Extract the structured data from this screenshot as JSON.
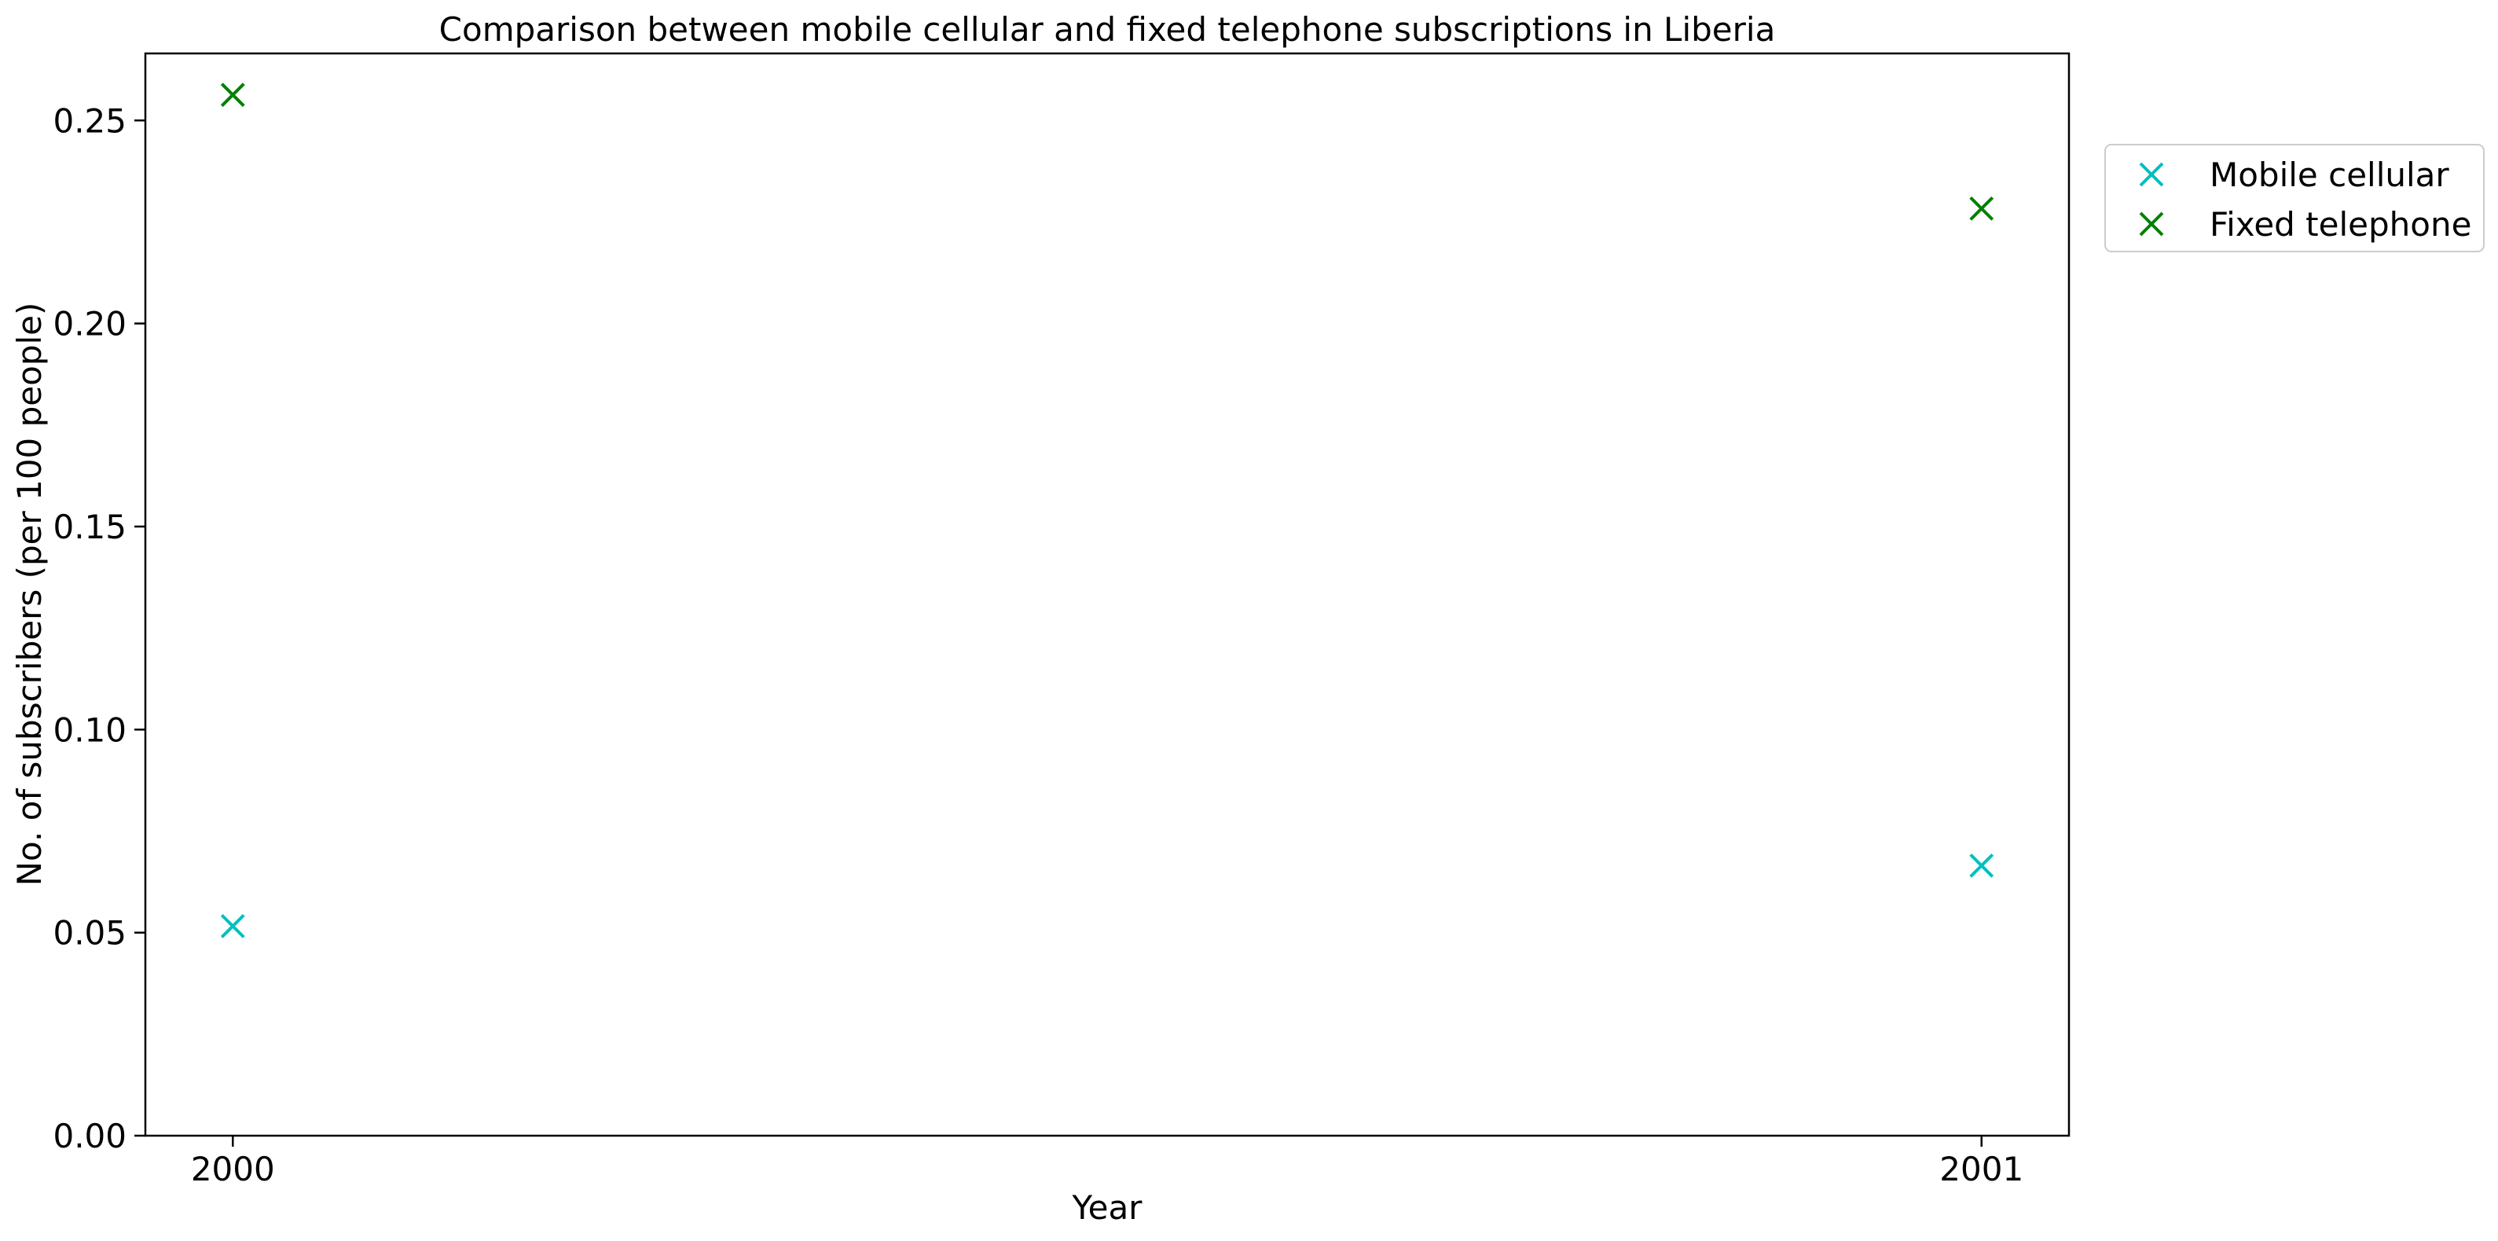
{
  "chart_data": {
    "type": "scatter",
    "title": "Comparison between mobile cellular and fixed telephone subscriptions in Liberia",
    "xlabel": "Year",
    "ylabel": "No. of subscribers (per 100 people)",
    "x": [
      2000,
      2001
    ],
    "x_tick_labels": [
      "2000",
      "2001"
    ],
    "xlim": [
      1999.95,
      2001.05
    ],
    "ylim": [
      0,
      0.2665
    ],
    "y_ticks": [
      0.0,
      0.05,
      0.1,
      0.15,
      0.2,
      0.25
    ],
    "y_tick_labels": [
      "0.00",
      "0.05",
      "0.10",
      "0.15",
      "0.20",
      "0.25"
    ],
    "grid": false,
    "legend_position": "outside-top-right",
    "marker": "x",
    "series": [
      {
        "name": "Mobile cellular",
        "values": [
          0.0516,
          0.0665
        ],
        "color": "#00bfbf"
      },
      {
        "name": "Fixed telephone",
        "values": [
          0.2563,
          0.2283
        ],
        "color": "#008000"
      }
    ]
  }
}
